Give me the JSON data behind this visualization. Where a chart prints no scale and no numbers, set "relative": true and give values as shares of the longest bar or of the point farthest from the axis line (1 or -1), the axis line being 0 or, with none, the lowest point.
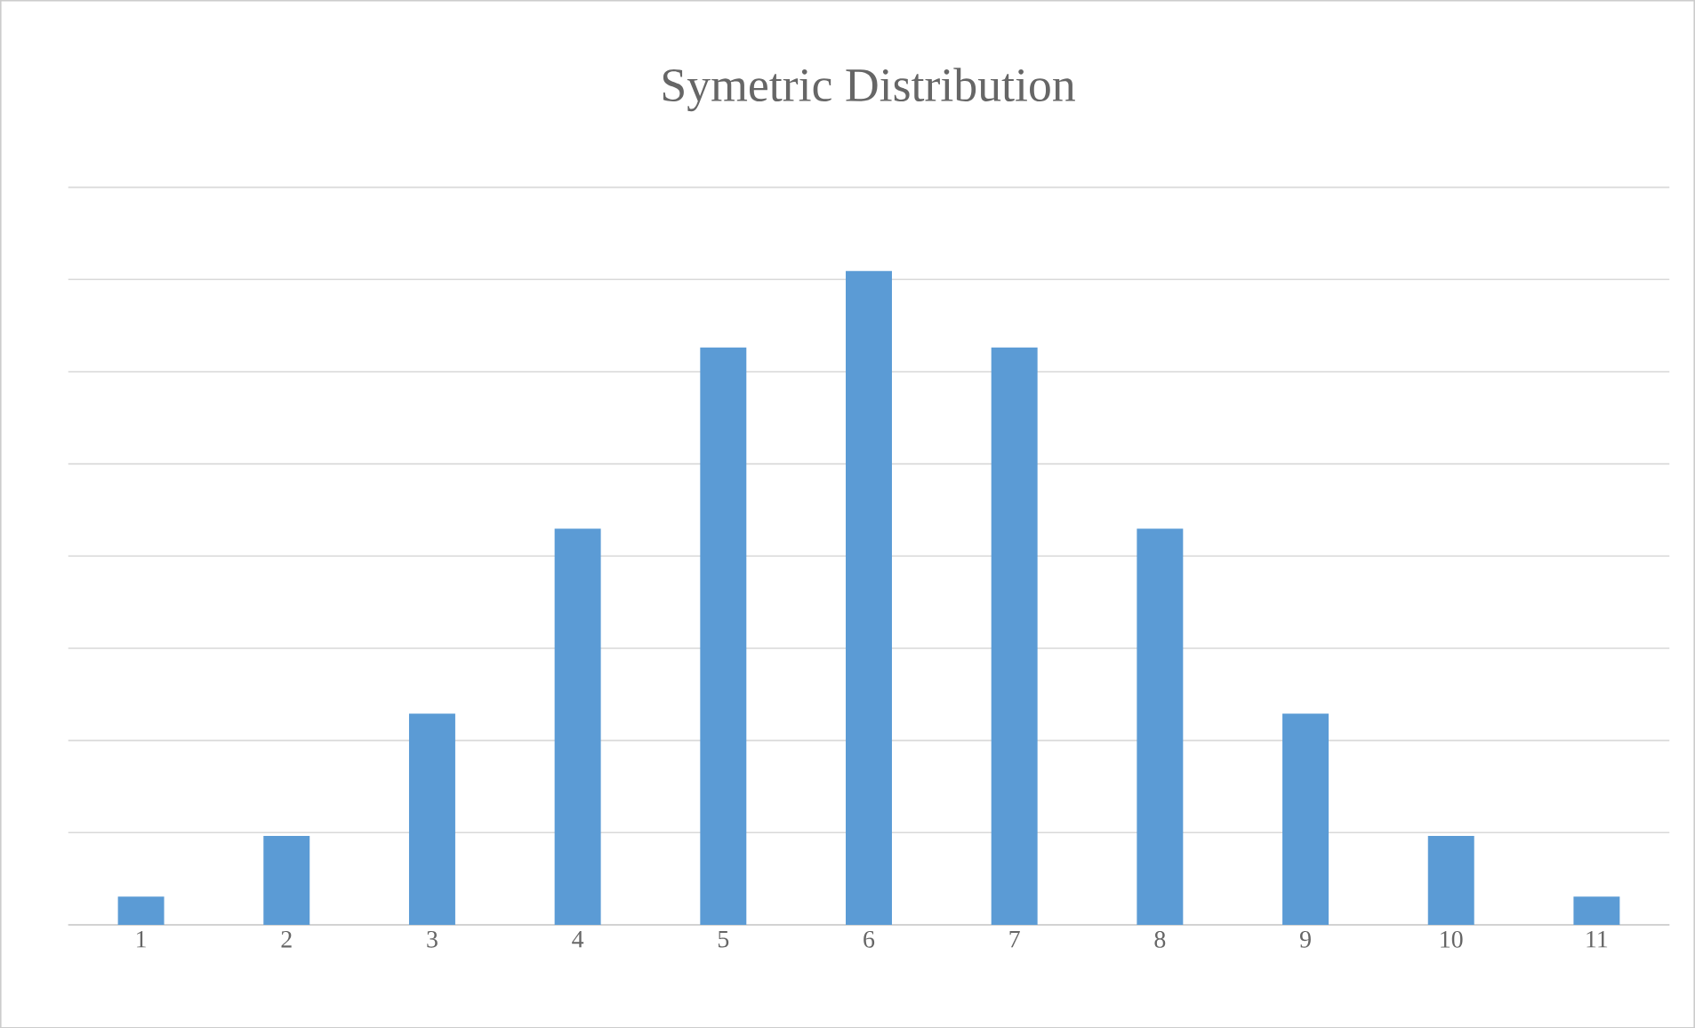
{
  "chart_data": {
    "type": "bar",
    "title": "Symetric Distribution",
    "categories": [
      "1",
      "2",
      "3",
      "4",
      "5",
      "6",
      "7",
      "8",
      "9",
      "10",
      "11"
    ],
    "values": [
      0.043,
      0.136,
      0.323,
      0.606,
      0.883,
      1,
      0.883,
      0.606,
      0.323,
      0.136,
      0.043
    ],
    "color": "#5b9bd5",
    "relative": true,
    "grid": "y"
  }
}
